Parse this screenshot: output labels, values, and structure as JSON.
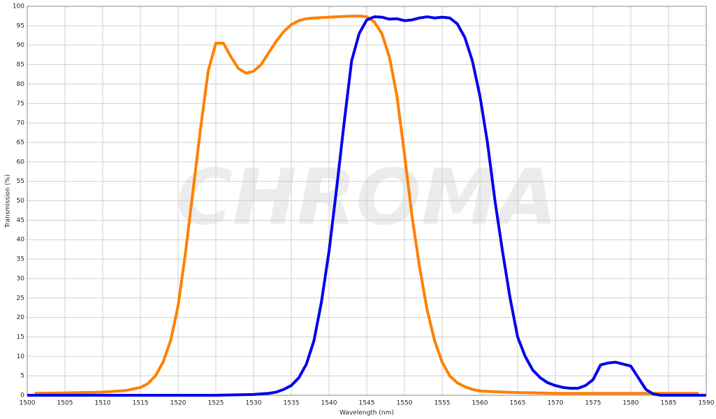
{
  "chart_data": {
    "type": "line",
    "xlabel": "Wavelength (nm)",
    "ylabel": "Transmission (%)",
    "watermark": "CHROMA",
    "xlim": [
      1500,
      1590
    ],
    "xticks": [
      1500,
      1505,
      1510,
      1515,
      1520,
      1525,
      1530,
      1535,
      1540,
      1545,
      1550,
      1555,
      1560,
      1565,
      1570,
      1575,
      1580,
      1585,
      1590
    ],
    "ylim": [
      0,
      100
    ],
    "yticks": [
      0,
      5,
      10,
      15,
      20,
      25,
      30,
      35,
      40,
      45,
      50,
      55,
      60,
      65,
      70,
      75,
      80,
      85,
      90,
      95,
      100
    ],
    "grid": true,
    "series": [
      {
        "color": "#ff8000",
        "x": [
          1501,
          1505,
          1510,
          1513,
          1515,
          1516,
          1517,
          1518,
          1519,
          1520,
          1521,
          1522,
          1523,
          1524,
          1525,
          1526,
          1527,
          1528,
          1529,
          1530,
          1531,
          1532,
          1533,
          1534,
          1535,
          1536,
          1537,
          1538,
          1540,
          1542,
          1544,
          1545,
          1546,
          1547,
          1548,
          1549,
          1550,
          1551,
          1552,
          1553,
          1554,
          1555,
          1556,
          1557,
          1558,
          1559,
          1560,
          1562,
          1565,
          1570,
          1580,
          1589
        ],
        "values": [
          0.5,
          0.6,
          0.8,
          1.2,
          2,
          3,
          5,
          8.5,
          14,
          23,
          37,
          53,
          69,
          83.5,
          90.5,
          90.5,
          87,
          84,
          82.8,
          83.3,
          85,
          88,
          91,
          93.5,
          95.3,
          96.3,
          96.8,
          97,
          97.2,
          97.4,
          97.5,
          97.3,
          96,
          93,
          87,
          77,
          62,
          46,
          33,
          22,
          14,
          8.5,
          5,
          3.2,
          2.2,
          1.5,
          1.1,
          0.9,
          0.7,
          0.5,
          0.5,
          0.5
        ]
      },
      {
        "color": "#0000ee",
        "x": [
          1500,
          1525,
          1530,
          1532,
          1533,
          1534,
          1535,
          1536,
          1537,
          1538,
          1539,
          1540,
          1541,
          1542,
          1543,
          1544,
          1545,
          1546,
          1547,
          1548,
          1549,
          1550,
          1551,
          1552,
          1553,
          1554,
          1555,
          1556,
          1557,
          1558,
          1559,
          1560,
          1561,
          1562,
          1563,
          1564,
          1565,
          1566,
          1567,
          1568,
          1569,
          1570,
          1571,
          1572,
          1573,
          1574,
          1575,
          1576,
          1577,
          1578,
          1579,
          1580,
          1581,
          1582,
          1583,
          1584,
          1590
        ],
        "values": [
          0,
          0,
          0.2,
          0.5,
          0.8,
          1.5,
          2.5,
          4.5,
          8,
          14,
          24,
          37,
          53,
          70,
          86,
          93,
          96.5,
          97.3,
          97.2,
          96.7,
          96.8,
          96.3,
          96.5,
          97,
          97.3,
          97,
          97.2,
          97,
          95.5,
          92,
          86,
          77,
          65,
          50,
          37,
          25,
          15,
          10,
          6.5,
          4.5,
          3.2,
          2.5,
          2,
          1.8,
          1.8,
          2.5,
          4,
          7.8,
          8.3,
          8.5,
          8,
          7.5,
          4.5,
          1.5,
          0.3,
          0,
          0
        ]
      }
    ]
  }
}
